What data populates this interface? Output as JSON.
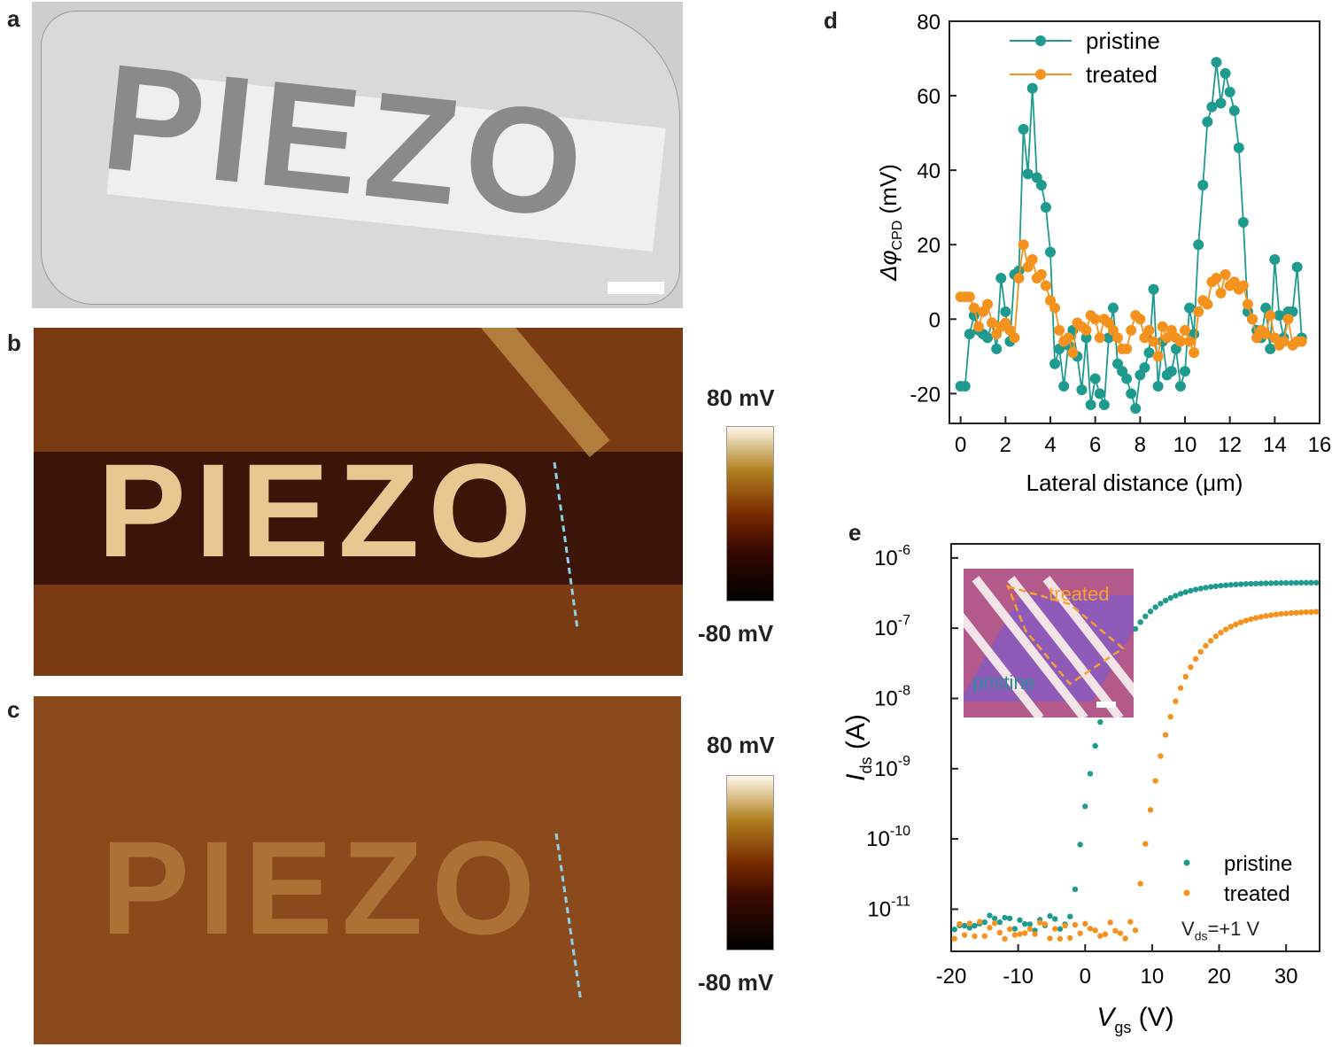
{
  "panels": {
    "a": {
      "letter": "a",
      "text": "PIEZO"
    },
    "b": {
      "letter": "b",
      "text": "PIEZO",
      "cbar_top": "80 mV",
      "cbar_bottom": "-80 mV"
    },
    "c": {
      "letter": "c",
      "text": "PIEZO",
      "cbar_top": "80 mV",
      "cbar_bottom": "-80 mV"
    },
    "d": {
      "letter": "d"
    },
    "e": {
      "letter": "e",
      "inset_treated": "treated",
      "inset_pristine": "pristine",
      "vds_main": "V",
      "vds_sub": "ds",
      "vds_rest": "=+1 V"
    }
  },
  "colors": {
    "pristine": "#1f9a8e",
    "treated": "#f5921e"
  },
  "chart_data": [
    {
      "type": "line",
      "xlabel": "Lateral distance (μm)",
      "ylabel_main": "Δφ",
      "ylabel_sub": "CPD",
      "ylabel_unit": " (mV)",
      "xlim": [
        -0.5,
        16
      ],
      "ylim": [
        -28,
        80
      ],
      "xticks": [
        0,
        2,
        4,
        6,
        8,
        10,
        12,
        14,
        16
      ],
      "yticks": [
        -20,
        0,
        20,
        40,
        60,
        80
      ],
      "series": [
        {
          "name": "pristine",
          "color": "#1f9a8e",
          "x": [
            0,
            0.2,
            0.4,
            0.6,
            0.8,
            1.0,
            1.2,
            1.4,
            1.6,
            1.8,
            2.0,
            2.2,
            2.4,
            2.6,
            2.8,
            3.0,
            3.2,
            3.4,
            3.6,
            3.8,
            4.0,
            4.2,
            4.4,
            4.6,
            4.8,
            5.0,
            5.2,
            5.4,
            5.6,
            5.8,
            6.0,
            6.2,
            6.4,
            6.6,
            6.8,
            7.0,
            7.2,
            7.4,
            7.6,
            7.8,
            8.0,
            8.2,
            8.4,
            8.6,
            8.8,
            9.0,
            9.2,
            9.4,
            9.6,
            9.8,
            10.0,
            10.2,
            10.4,
            10.6,
            10.8,
            11.0,
            11.2,
            11.4,
            11.6,
            11.8,
            12.0,
            12.2,
            12.4,
            12.6,
            12.8,
            13.0,
            13.2,
            13.4,
            13.6,
            13.8,
            14.0,
            14.2,
            14.4,
            14.6,
            14.8,
            15.0,
            15.2
          ],
          "y": [
            -18,
            -18,
            -4,
            1,
            -3,
            -4,
            -5,
            -1,
            -8,
            11,
            2,
            -6,
            12,
            13,
            51,
            39,
            62,
            38,
            36,
            30,
            18,
            -12,
            -8,
            -18,
            -7,
            -3,
            -10,
            -19,
            -5,
            -23,
            -16,
            -20,
            -23,
            -5,
            3,
            -12,
            -14,
            -16,
            -20,
            -24,
            -15,
            -13,
            -9,
            8,
            -18,
            -6,
            -15,
            -14,
            -8,
            -18,
            -14,
            3,
            -4,
            20,
            36,
            53,
            57,
            69,
            58,
            66,
            61,
            56,
            46,
            26,
            2,
            0,
            -3,
            -5,
            3,
            -8,
            16,
            1,
            -5,
            2,
            2,
            14,
            -5
          ],
          "_note": ""
        },
        {
          "name": "treated",
          "color": "#f5921e",
          "x": [
            0,
            0.2,
            0.4,
            0.6,
            0.8,
            1.0,
            1.2,
            1.4,
            1.6,
            1.8,
            2.0,
            2.2,
            2.4,
            2.6,
            2.8,
            3.0,
            3.2,
            3.4,
            3.6,
            3.8,
            4.0,
            4.2,
            4.4,
            4.6,
            4.8,
            5.0,
            5.2,
            5.4,
            5.6,
            5.8,
            6.0,
            6.2,
            6.4,
            6.6,
            6.8,
            7.0,
            7.2,
            7.4,
            7.6,
            7.8,
            8.0,
            8.2,
            8.4,
            8.6,
            8.8,
            9.0,
            9.2,
            9.4,
            9.6,
            9.8,
            10.0,
            10.2,
            10.4,
            10.6,
            10.8,
            11.0,
            11.2,
            11.4,
            11.6,
            11.8,
            12.0,
            12.2,
            12.4,
            12.6,
            12.8,
            13.0,
            13.2,
            13.4,
            13.6,
            13.8,
            14.0,
            14.2,
            14.4,
            14.6,
            14.8,
            15.0,
            15.2
          ],
          "y": [
            6,
            6,
            6,
            3,
            -2,
            2,
            4,
            -1,
            -4,
            -2,
            -1,
            -3,
            -5,
            11,
            20,
            14,
            16,
            11,
            12,
            9,
            5,
            3,
            -3,
            -6,
            -5,
            -9,
            -1,
            -2,
            -3,
            1,
            0,
            -5,
            0,
            -1,
            -3,
            -5,
            -8,
            -8,
            -3,
            1,
            0,
            -5,
            -3,
            -6,
            -10,
            -2,
            -5,
            -3,
            -5,
            -6,
            -3,
            -6,
            -9,
            2,
            5,
            4,
            10,
            11,
            7,
            12,
            9,
            10,
            8,
            9,
            4,
            0,
            -5,
            -3,
            -4,
            1,
            -5,
            -7,
            -6,
            0,
            -7,
            -6,
            -6
          ],
          "_note": ""
        }
      ],
      "legend": "top-center"
    },
    {
      "type": "scatter",
      "xlabel_main": "V",
      "xlabel_sub": "gs",
      "xlabel_unit": " (V)",
      "ylabel_main": "I",
      "ylabel_sub": "ds",
      "ylabel_unit": " (A)",
      "log_y": true,
      "xlim": [
        -20,
        35
      ],
      "ylim_exp": [
        -11.6,
        -5.8
      ],
      "xticks": [
        -20,
        -10,
        0,
        10,
        20,
        30
      ],
      "ytick_exps": [
        -11,
        -10,
        -9,
        -8,
        -7,
        -6
      ],
      "ytick_base": "10",
      "series": [
        {
          "name": "pristine",
          "color": "#1f9a8e",
          "vth": -2,
          "ion_exp": -6.35,
          "ioff_exp": -11.2
        },
        {
          "name": "treated",
          "color": "#f5921e",
          "vth": 7.5,
          "ion_exp": -6.75,
          "ioff_exp": -11.3
        }
      ],
      "legend": "bottom-right"
    }
  ]
}
